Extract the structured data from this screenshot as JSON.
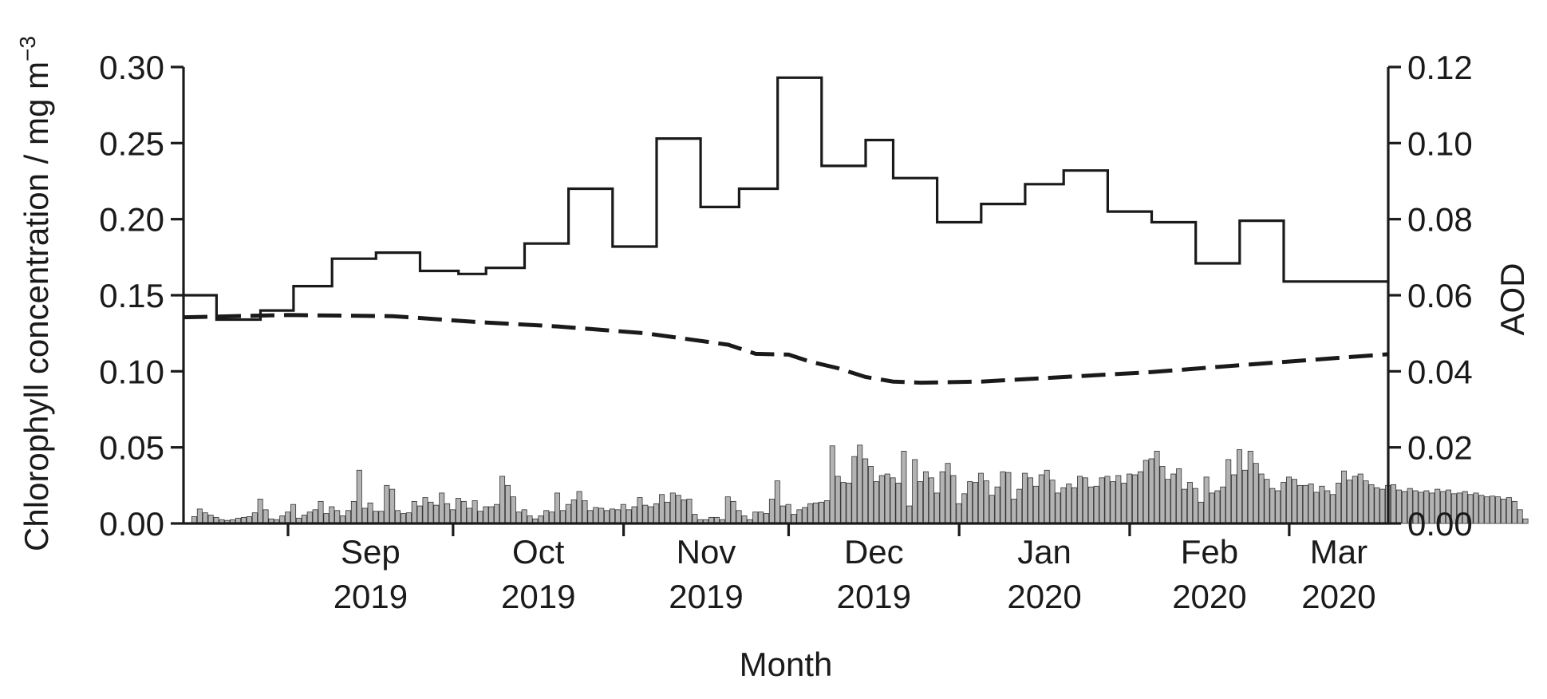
{
  "chart_data": {
    "type": "bar",
    "xlabel": "Month",
    "ylabel_left": "Chlorophyll concentration / mg m",
    "ylabel_left_superscript": "−3",
    "ylabel_right": "AOD",
    "x_range": [
      "2019-08-13",
      "2020-03-19"
    ],
    "y_left": {
      "range": [
        0,
        0.3
      ],
      "ticks": [
        0.0,
        0.05,
        0.1,
        0.15,
        0.2,
        0.25,
        0.3
      ],
      "tick_labels": [
        "0.00",
        "0.05",
        "0.10",
        "0.15",
        "0.20",
        "0.25",
        "0.30"
      ]
    },
    "y_right": {
      "range": [
        0,
        0.12
      ],
      "ticks": [
        0.0,
        0.02,
        0.04,
        0.06,
        0.08,
        0.1,
        0.12
      ],
      "tick_labels": [
        "0.00",
        "0.02",
        "0.04",
        "0.06",
        "0.08",
        "0.10",
        "0.12"
      ]
    },
    "x_ticks": [
      {
        "date": "2019-09-01",
        "month": "Sep",
        "year": "2019"
      },
      {
        "date": "2019-10-01",
        "month": "Oct",
        "year": "2019"
      },
      {
        "date": "2019-11-01",
        "month": "Nov",
        "year": "2019"
      },
      {
        "date": "2019-12-01",
        "month": "Dec",
        "year": "2019"
      },
      {
        "date": "2020-01-01",
        "month": "Jan",
        "year": "2020"
      },
      {
        "date": "2020-02-01",
        "month": "Feb",
        "year": "2020"
      },
      {
        "date": "2020-03-01",
        "month": "Mar",
        "year": "2020"
      }
    ],
    "colors": {
      "bars_fill": "#b3b3b3",
      "bars_stroke": "#333333",
      "lines": "#1a1a1a"
    },
    "series": [
      {
        "kind": "step",
        "axis": "left",
        "style": "solid",
        "points": [
          [
            "2019-08-13",
            0.15
          ],
          [
            "2019-08-19",
            0.134
          ],
          [
            "2019-08-27",
            0.14
          ],
          [
            "2019-09-02",
            0.156
          ],
          [
            "2019-09-09",
            0.174
          ],
          [
            "2019-09-17",
            0.178
          ],
          [
            "2019-09-25",
            0.166
          ],
          [
            "2019-10-02",
            0.164
          ],
          [
            "2019-10-07",
            0.168
          ],
          [
            "2019-10-14",
            0.184
          ],
          [
            "2019-10-22",
            0.22
          ],
          [
            "2019-10-30",
            0.182
          ],
          [
            "2019-11-07",
            0.253
          ],
          [
            "2019-11-15",
            0.208
          ],
          [
            "2019-11-22",
            0.22
          ],
          [
            "2019-11-29",
            0.293
          ],
          [
            "2019-12-07",
            0.235
          ],
          [
            "2019-12-15",
            0.252
          ],
          [
            "2019-12-20",
            0.227
          ],
          [
            "2019-12-28",
            0.198
          ],
          [
            "2020-01-05",
            0.21
          ],
          [
            "2020-01-13",
            0.223
          ],
          [
            "2020-01-20",
            0.232
          ],
          [
            "2020-01-28",
            0.205
          ],
          [
            "2020-02-05",
            0.198
          ],
          [
            "2020-02-13",
            0.171
          ],
          [
            "2020-02-21",
            0.199
          ],
          [
            "2020-02-29",
            0.159
          ],
          [
            "2020-03-19",
            0.159
          ]
        ]
      },
      {
        "kind": "line",
        "axis": "right",
        "style": "dashed",
        "points": [
          [
            "2019-08-13",
            0.0542
          ],
          [
            "2019-09-01",
            0.0548
          ],
          [
            "2019-09-20",
            0.0545
          ],
          [
            "2019-10-05",
            0.053
          ],
          [
            "2019-10-20",
            0.0518
          ],
          [
            "2019-11-05",
            0.05
          ],
          [
            "2019-11-20",
            0.047
          ],
          [
            "2019-11-25",
            0.0446
          ],
          [
            "2019-12-01",
            0.0444
          ],
          [
            "2019-12-05",
            0.0425
          ],
          [
            "2019-12-10",
            0.0408
          ],
          [
            "2019-12-15",
            0.0385
          ],
          [
            "2019-12-20",
            0.0373
          ],
          [
            "2019-12-25",
            0.037
          ],
          [
            "2020-01-05",
            0.0373
          ],
          [
            "2020-01-20",
            0.0385
          ],
          [
            "2020-02-05",
            0.0398
          ],
          [
            "2020-02-20",
            0.0415
          ],
          [
            "2020-03-05",
            0.043
          ],
          [
            "2020-03-19",
            0.0445
          ]
        ]
      },
      {
        "kind": "bars",
        "axis": "right",
        "start_date": "2019-08-15",
        "values": [
          0.0018,
          0.0038,
          0.0028,
          0.0022,
          0.0016,
          0.001,
          0.0008,
          0.001,
          0.0014,
          0.0016,
          0.0018,
          0.0028,
          0.0064,
          0.0036,
          0.0012,
          0.001,
          0.002,
          0.003,
          0.005,
          0.0014,
          0.0022,
          0.003,
          0.0036,
          0.0058,
          0.0026,
          0.0044,
          0.0034,
          0.002,
          0.0034,
          0.0058,
          0.014,
          0.004,
          0.0054,
          0.0032,
          0.0032,
          0.01,
          0.009,
          0.0034,
          0.0026,
          0.0028,
          0.0058,
          0.0046,
          0.0068,
          0.0056,
          0.0048,
          0.008,
          0.0052,
          0.0036,
          0.0066,
          0.0058,
          0.004,
          0.006,
          0.0032,
          0.0044,
          0.0044,
          0.005,
          0.0124,
          0.01,
          0.007,
          0.003,
          0.0036,
          0.002,
          0.0012,
          0.002,
          0.0034,
          0.003,
          0.008,
          0.0034,
          0.005,
          0.0062,
          0.0084,
          0.006,
          0.0034,
          0.0042,
          0.004,
          0.0034,
          0.0038,
          0.0036,
          0.005,
          0.0036,
          0.0044,
          0.0068,
          0.0048,
          0.0044,
          0.0052,
          0.0076,
          0.0056,
          0.008,
          0.0074,
          0.0062,
          0.0064,
          0.0024,
          0.001,
          0.001,
          0.0016,
          0.0016,
          0.001,
          0.007,
          0.0058,
          0.0034,
          0.002,
          0.001,
          0.003,
          0.003,
          0.0026,
          0.0064,
          0.0112,
          0.0046,
          0.005,
          0.0024,
          0.0036,
          0.0042,
          0.0052,
          0.0054,
          0.0056,
          0.006,
          0.0204,
          0.0124,
          0.0108,
          0.0106,
          0.0176,
          0.0206,
          0.017,
          0.015,
          0.011,
          0.0126,
          0.013,
          0.012,
          0.0106,
          0.019,
          0.0046,
          0.0168,
          0.011,
          0.0136,
          0.012,
          0.008,
          0.0136,
          0.0158,
          0.0126,
          0.0052,
          0.0078,
          0.011,
          0.0108,
          0.0132,
          0.0112,
          0.0074,
          0.0096,
          0.0136,
          0.0134,
          0.0064,
          0.009,
          0.0132,
          0.012,
          0.0098,
          0.0128,
          0.014,
          0.0114,
          0.008,
          0.0094,
          0.0104,
          0.0094,
          0.0124,
          0.012,
          0.0096,
          0.0098,
          0.012,
          0.0124,
          0.011,
          0.0126,
          0.0106,
          0.013,
          0.0128,
          0.0136,
          0.0166,
          0.017,
          0.019,
          0.015,
          0.0116,
          0.013,
          0.0144,
          0.009,
          0.0108,
          0.0092,
          0.0056,
          0.0122,
          0.008,
          0.0086,
          0.0096,
          0.0168,
          0.0128,
          0.0194,
          0.014,
          0.019,
          0.0158,
          0.013,
          0.0116,
          0.0092,
          0.0086,
          0.0108,
          0.0122,
          0.0116,
          0.01,
          0.01,
          0.0104,
          0.0082,
          0.0098,
          0.0086,
          0.0076,
          0.0106,
          0.0138,
          0.0114,
          0.0124,
          0.013,
          0.0112,
          0.0102,
          0.0094,
          0.009,
          0.01,
          0.0102,
          0.0088,
          0.0084,
          0.0092,
          0.0086,
          0.0082,
          0.0086,
          0.008,
          0.009,
          0.0084,
          0.0088,
          0.0078,
          0.008,
          0.0084,
          0.0076,
          0.008,
          0.0074,
          0.007,
          0.0072,
          0.007,
          0.0064,
          0.0068,
          0.0058,
          0.0036,
          0.0012
        ]
      }
    ]
  }
}
